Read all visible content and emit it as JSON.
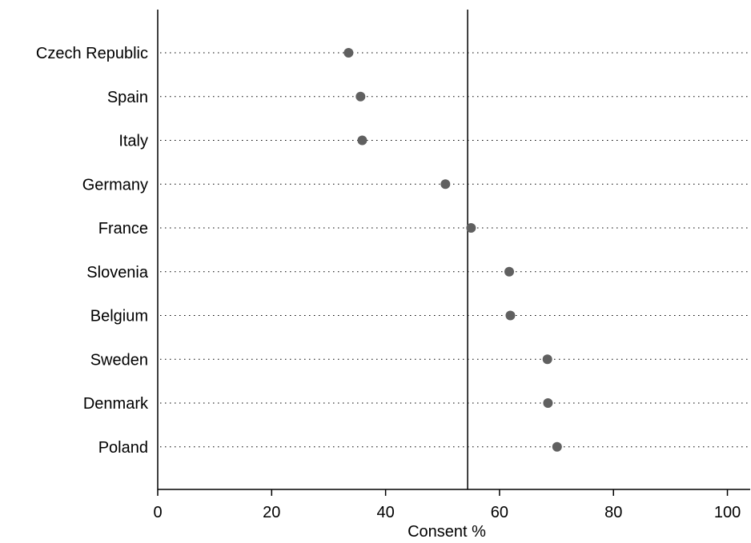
{
  "chart_data": {
    "type": "scatter",
    "subtype": "dot-plot",
    "title": "",
    "xlabel": "Consent %",
    "ylabel": "",
    "xlim": [
      0,
      104
    ],
    "xticks": [
      0,
      20,
      40,
      60,
      80,
      100
    ],
    "xtick_labels": [
      "0",
      "20",
      "40",
      "60",
      "80",
      "100"
    ],
    "grid": "dotted horizontal guide line per category",
    "categories": [
      "Czech Republic",
      "Spain",
      "Italy",
      "Germany",
      "France",
      "Slovenia",
      "Belgium",
      "Sweden",
      "Denmark",
      "Poland"
    ],
    "values": [
      33.5,
      35.6,
      35.9,
      50.5,
      55.0,
      61.7,
      61.9,
      68.4,
      68.5,
      70.1
    ],
    "reference_line": {
      "x": 54.4,
      "orientation": "vertical"
    },
    "marker_color": "#606060",
    "line_color": "#000000"
  }
}
